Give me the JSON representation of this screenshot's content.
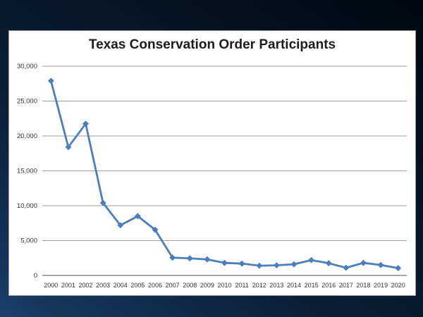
{
  "slide": {
    "background_color_top": "#051526",
    "background_color_bottom": "#1d4170",
    "panel_color": "#ffffff",
    "panel_border_color": "#9f9f9f"
  },
  "chart_data": {
    "type": "line",
    "title": "Texas Conservation Order Participants",
    "categories": [
      "2000",
      "2001",
      "2002",
      "2003",
      "2004",
      "2005",
      "2006",
      "2007",
      "2008",
      "2009",
      "2010",
      "2011",
      "2012",
      "2013",
      "2014",
      "2015",
      "2016",
      "2017",
      "2018",
      "2019",
      "2020"
    ],
    "series": [
      {
        "name": "Participants",
        "values": [
          27900,
          18400,
          21750,
          10400,
          7200,
          8500,
          6550,
          2550,
          2450,
          2300,
          1800,
          1700,
          1400,
          1450,
          1600,
          2200,
          1750,
          1100,
          1800,
          1500,
          1050
        ]
      }
    ],
    "xlabel": "",
    "ylabel": "",
    "ylim": [
      0,
      30000
    ],
    "ytick_interval": 5000,
    "ytick_labels": [
      "0",
      "5,000",
      "10,000",
      "15,000",
      "20,000",
      "25,000",
      "30,000"
    ],
    "grid": true,
    "legend": "none",
    "marker": "diamond",
    "colors": {
      "line": "#4a7ebc",
      "marker": "#4a7ebc",
      "gridline": "#9d9d9d",
      "axis_line": "#8a8a8a",
      "title": "#1c1c1c",
      "tick_labels": "#333333"
    }
  }
}
